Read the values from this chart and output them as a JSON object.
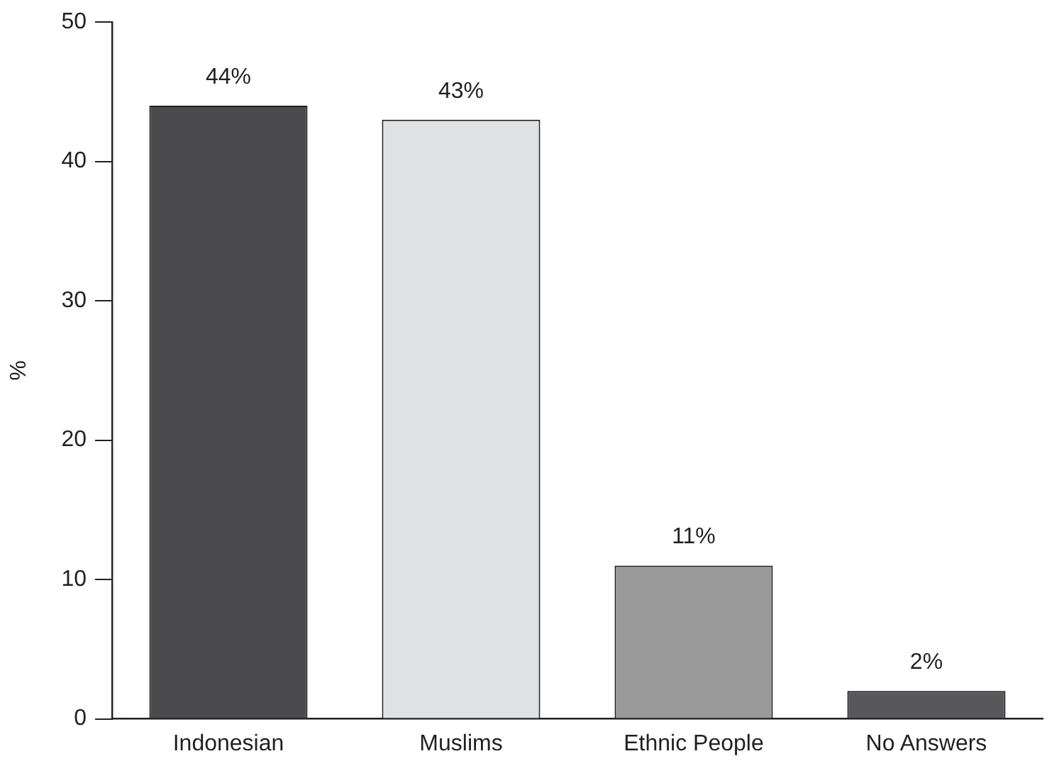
{
  "chart_data": {
    "type": "bar",
    "ylabel": "%",
    "categories": [
      "Indonesian",
      "Muslims",
      "Ethnic People",
      "No Answers"
    ],
    "values": [
      44,
      43,
      11,
      2
    ],
    "colors": [
      "#4a4a4c",
      "#e0e1e3",
      "#9a9a9b",
      "#58585a"
    ],
    "value_labels": [
      "44%",
      "43%",
      "11%",
      "2%"
    ],
    "ylim": [
      0,
      50
    ],
    "yticks": [
      0,
      10,
      20,
      30,
      40,
      50
    ],
    "grid": false,
    "legend": false
  }
}
